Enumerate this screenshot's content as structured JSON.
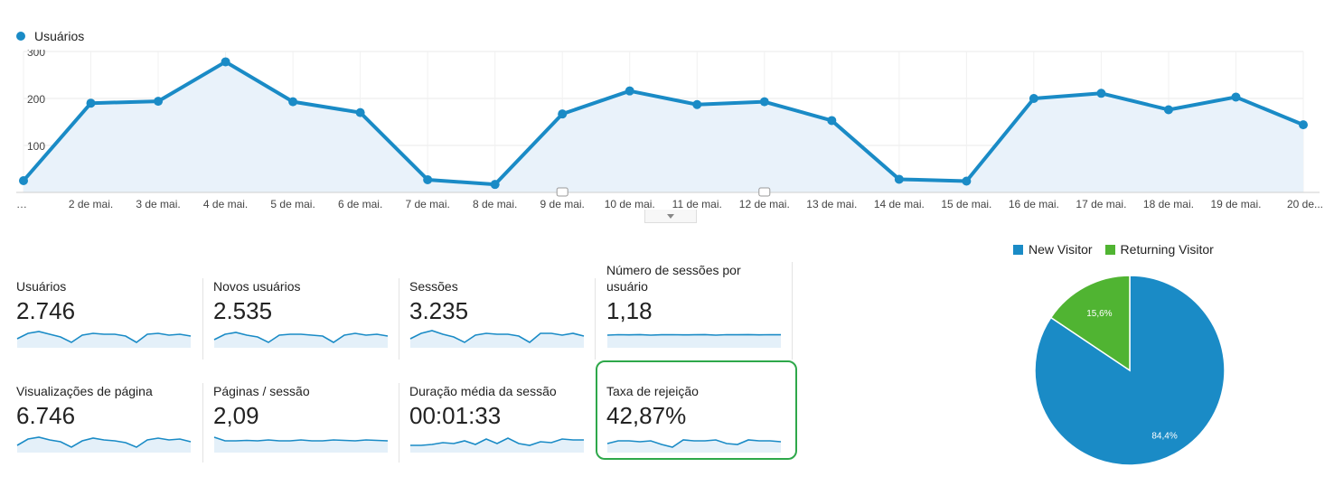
{
  "legend": {
    "label": "Usuários",
    "color": "#1a8bc6"
  },
  "chart_data": [
    {
      "type": "area",
      "series": [
        {
          "name": "Usuários",
          "values": [
            25,
            190,
            194,
            278,
            193,
            170,
            27,
            17,
            167,
            216,
            187,
            193,
            153,
            28,
            24,
            200,
            211,
            176,
            203,
            144
          ]
        }
      ],
      "categories": [
        "…",
        "2 de mai.",
        "3 de mai.",
        "4 de mai.",
        "5 de mai.",
        "6 de mai.",
        "7 de mai.",
        "8 de mai.",
        "9 de mai.",
        "10 de mai.",
        "11 de mai.",
        "12 de mai.",
        "13 de mai.",
        "14 de mai.",
        "15 de mai.",
        "16 de mai.",
        "17 de mai.",
        "18 de mai.",
        "19 de mai.",
        "20 de..."
      ],
      "yticks": [
        "100",
        "200",
        "300"
      ],
      "ylim": [
        0,
        300
      ],
      "annotations_at": [
        "9 de mai.",
        "12 de mai."
      ]
    },
    {
      "type": "pie",
      "slices": [
        {
          "name": "New Visitor",
          "value": 84.4,
          "label": "84,4%",
          "color": "#1a8bc6"
        },
        {
          "name": "Returning Visitor",
          "value": 15.6,
          "label": "15,6%",
          "color": "#50b432"
        }
      ],
      "legend_position": "top"
    }
  ],
  "metrics": [
    {
      "label": "Usuários",
      "value": "2.746",
      "spark": [
        8,
        14,
        16,
        13,
        10,
        4,
        12,
        14,
        13,
        13,
        11,
        4,
        13,
        14,
        12,
        13,
        11
      ]
    },
    {
      "label": "Novos usuários",
      "value": "2.535",
      "spark": [
        7,
        13,
        15,
        12,
        10,
        4,
        12,
        13,
        13,
        12,
        11,
        4,
        12,
        14,
        12,
        13,
        11
      ]
    },
    {
      "label": "Sessões",
      "value": "3.235",
      "spark": [
        8,
        14,
        17,
        13,
        10,
        4,
        12,
        14,
        13,
        13,
        11,
        4,
        14,
        14,
        12,
        14,
        11
      ]
    },
    {
      "label": "Número de sessões por usuário",
      "value": "1,18",
      "spark": [
        12,
        12.5,
        12.3,
        12.6,
        12,
        12.4,
        12.5,
        12.3,
        12.4,
        12.6,
        12,
        12.5,
        12.4,
        12.6,
        12.3,
        12.5,
        12.4
      ]
    },
    {
      "label": "Visualizações de página",
      "value": "6.746",
      "spark": [
        6,
        13,
        15,
        12,
        10,
        4,
        11,
        14,
        12,
        11,
        9,
        4,
        12,
        14,
        12,
        13,
        10
      ]
    },
    {
      "label": "Páginas / sessão",
      "value": "2,09",
      "spark": [
        15,
        11,
        11,
        11.5,
        11,
        12,
        11,
        11,
        12,
        11,
        11,
        12,
        11.5,
        11,
        12,
        11.5,
        11
      ]
    },
    {
      "label": "Duração média da sessão",
      "value": "00:01:33",
      "spark": [
        6,
        6,
        7,
        9,
        8,
        11,
        7,
        13,
        8,
        14,
        8,
        6,
        10,
        9,
        13,
        12,
        12
      ]
    },
    {
      "label": "Taxa de rejeição",
      "value": "42,87%",
      "spark": [
        8,
        11,
        11,
        10,
        11,
        7,
        4,
        12,
        11,
        11,
        12,
        8,
        7,
        12,
        11,
        11,
        10
      ]
    }
  ]
}
